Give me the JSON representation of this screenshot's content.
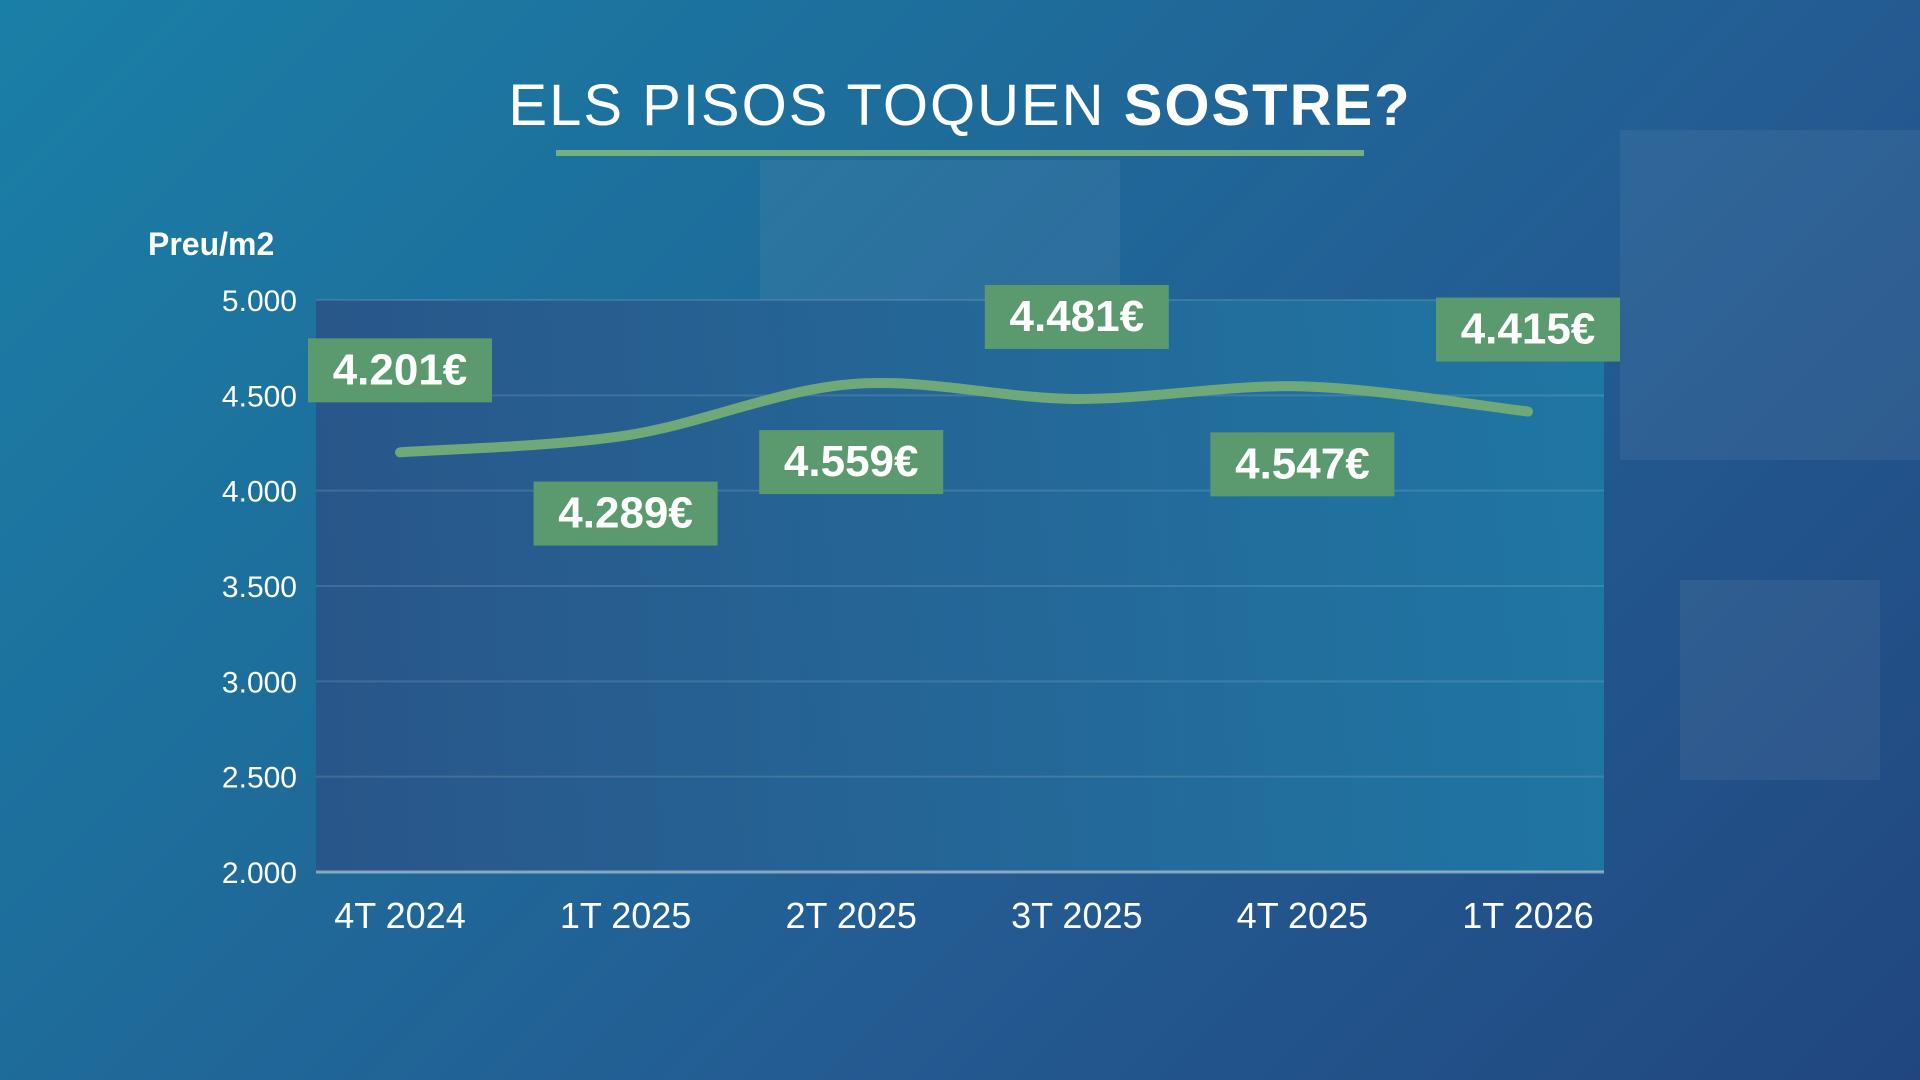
{
  "title": {
    "regular": "ELS PISOS TOQUEN",
    "bold": "SOSTRE?"
  },
  "colors": {
    "line": "#6fa97a",
    "label_bg": "#5b9a6f",
    "rule": "#74b17e",
    "plot_bg": "#2a5c8e"
  },
  "chart_data": {
    "type": "line",
    "title": "ELS PISOS TOQUEN SOSTRE?",
    "ylabel": "Preu/m2",
    "xlabel": "",
    "categories": [
      "4T 2024",
      "1T 2025",
      "2T 2025",
      "3T 2025",
      "4T 2025",
      "1T 2026"
    ],
    "series": [
      {
        "values": [
          4201,
          4289,
          4559,
          4481,
          4547,
          4415
        ]
      }
    ],
    "data_labels": [
      "4.201€",
      "4.289€",
      "4.559€",
      "4.481€",
      "4.547€",
      "4.415€"
    ],
    "label_side": [
      "above",
      "below",
      "below",
      "above",
      "below",
      "above"
    ],
    "ylim": [
      2000,
      5000
    ],
    "yticks": [
      2000,
      2500,
      3000,
      3500,
      4000,
      4500,
      5000
    ],
    "ytick_labels": [
      "2.000",
      "2.500",
      "3.000",
      "3.500",
      "4.000",
      "4.500",
      "5.000"
    ],
    "grid": true,
    "legend": "none"
  }
}
